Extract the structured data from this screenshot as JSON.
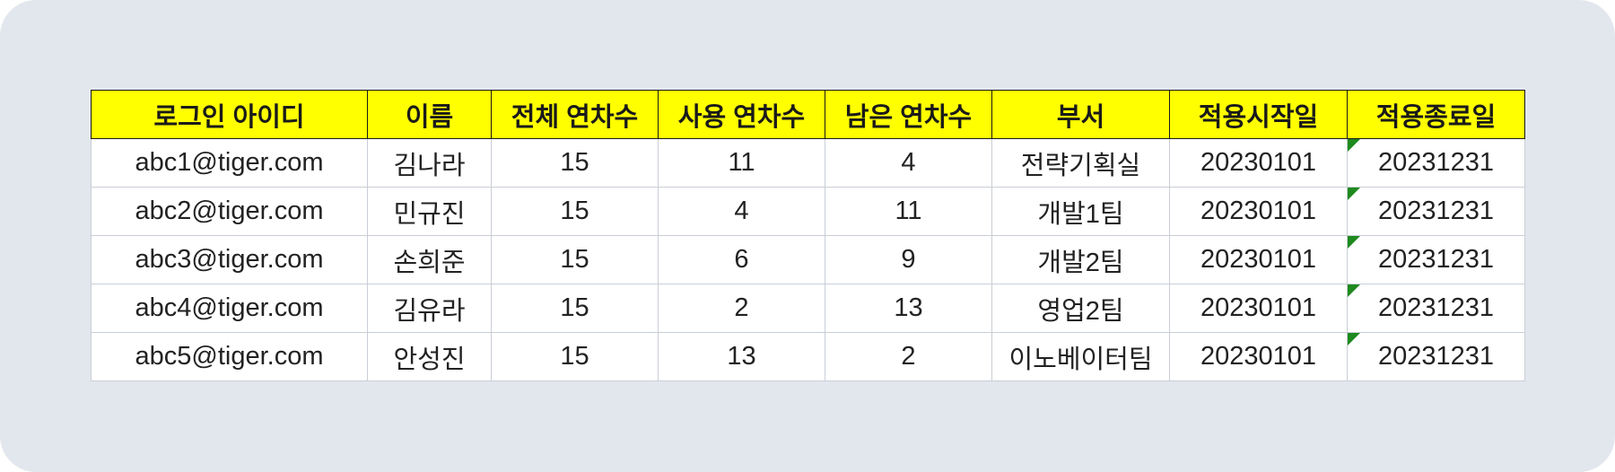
{
  "table": {
    "headers": [
      "로그인 아이디",
      "이름",
      "전체 연차수",
      "사용 연차수",
      "남은 연차수",
      "부서",
      "적용시작일",
      "적용종료일"
    ],
    "rows": [
      [
        "abc1@tiger.com",
        "김나라",
        "15",
        "11",
        "4",
        "전략기획실",
        "20230101",
        "20231231"
      ],
      [
        "abc2@tiger.com",
        "민규진",
        "15",
        "4",
        "11",
        "개발1팀",
        "20230101",
        "20231231"
      ],
      [
        "abc3@tiger.com",
        "손희준",
        "15",
        "6",
        "9",
        "개발2팀",
        "20230101",
        "20231231"
      ],
      [
        "abc4@tiger.com",
        "김유라",
        "15",
        "2",
        "13",
        "영업2팀",
        "20230101",
        "20231231"
      ],
      [
        "abc5@tiger.com",
        "안성진",
        "15",
        "13",
        "2",
        "이노베이터팀",
        "20230101",
        "20231231"
      ]
    ]
  },
  "colors": {
    "header_bg": "#ffff00",
    "page_bg": "#e2e7ee",
    "cell_flag": "#1e8a1e"
  }
}
